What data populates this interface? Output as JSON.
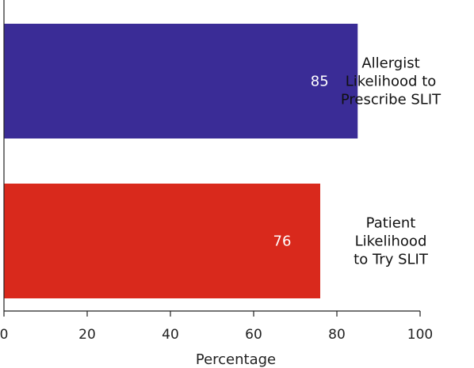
{
  "chart_data": {
    "type": "bar",
    "orientation": "horizontal",
    "categories": [
      "Allergist Likelihood to Prescribe SLIT",
      "Patient Likelihood to Try SLIT"
    ],
    "category_label_lines": [
      [
        "Allergist",
        "Likelihood to",
        "Prescribe SLIT"
      ],
      [
        "Patient",
        "Likelihood",
        "to Try SLIT"
      ]
    ],
    "values": [
      85,
      76
    ],
    "value_labels": [
      "85",
      "76"
    ],
    "colors": [
      "#3a2c96",
      "#d9291c"
    ],
    "xlabel": "Percentage",
    "ylabel": "",
    "xlim": [
      0,
      100
    ],
    "xticks": [
      0,
      20,
      40,
      60,
      80,
      100
    ],
    "xtick_labels": [
      "0",
      "20",
      "40",
      "60",
      "80",
      "100"
    ],
    "grid": false,
    "legend": "none"
  }
}
